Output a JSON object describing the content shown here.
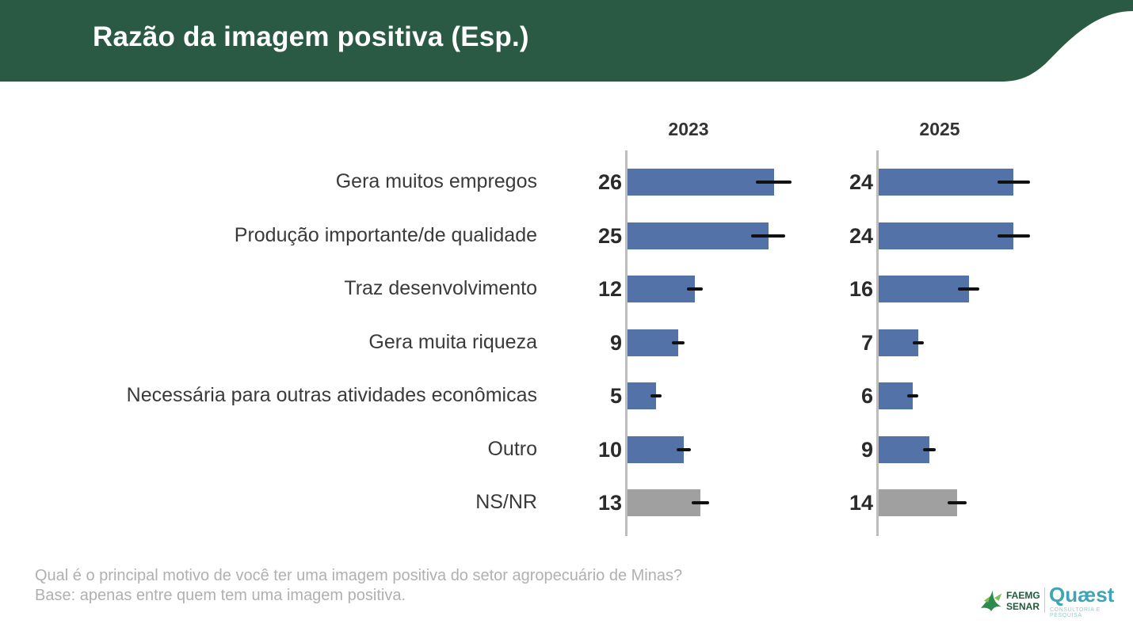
{
  "header": {
    "title": "Razão da imagem positiva (Esp.)",
    "band_color": "#2b5a44"
  },
  "chart_data": {
    "type": "bar",
    "orientation": "horizontal",
    "categories": [
      "Gera muitos empregos",
      "Produção importante/de qualidade",
      "Traz desenvolvimento",
      "Gera muita riqueza",
      "Necessária para outras atividades econômicas",
      "Outro",
      "NS/NR"
    ],
    "series": [
      {
        "name": "2023",
        "values": [
          26,
          25,
          12,
          9,
          5,
          10,
          13
        ]
      },
      {
        "name": "2025",
        "values": [
          24,
          24,
          16,
          7,
          6,
          9,
          14
        ]
      }
    ],
    "value_labels": {
      "2023": [
        "26",
        "25",
        "12",
        "9",
        "5",
        "10",
        "13"
      ],
      "2025": [
        "24",
        "24",
        "16",
        "7",
        "6",
        "9",
        "14"
      ]
    },
    "error_bars": true,
    "colors": {
      "bar": "#5272a8",
      "bar_nsnr": "#a0a0a0",
      "error_bar": "#111111",
      "axis": "#bdbdbd"
    },
    "xlim": [
      0,
      30
    ],
    "grid": false,
    "legend": "none"
  },
  "footer": {
    "question": "Qual é o principal motivo de você ter uma imagem positiva do setor agropecuário de Minas?",
    "base": "Base: apenas entre quem tem uma imagem positiva."
  },
  "logos": {
    "faemg_line1": "FAEMG",
    "faemg_line2": "SENAR",
    "quaest": "Quæst",
    "quaest_sub": "CONSULTORIA E PESQUISA"
  }
}
